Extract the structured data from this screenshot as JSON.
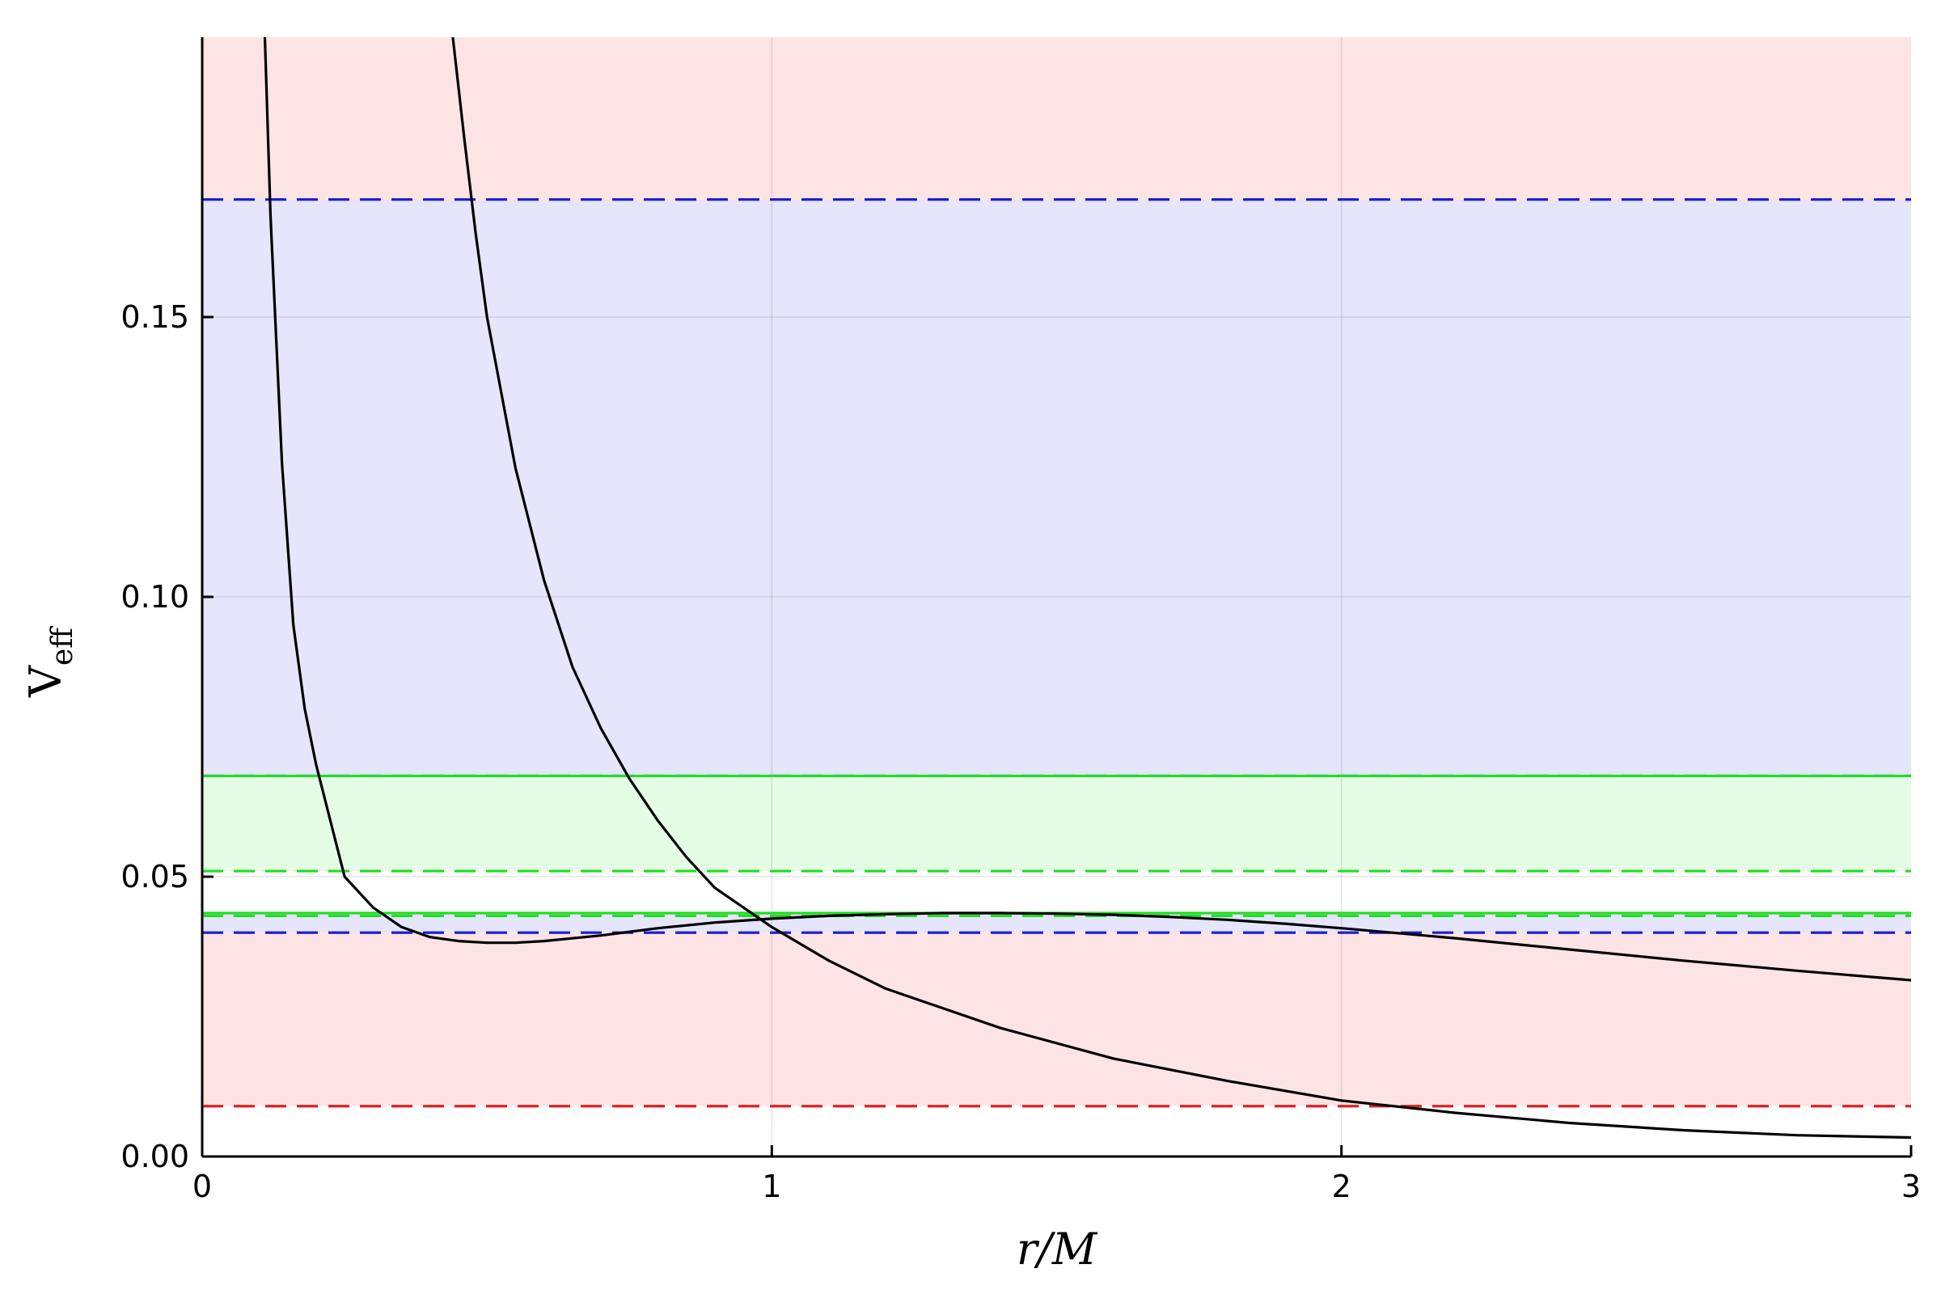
{
  "chart_data": {
    "type": "line",
    "xlabel": "r/M",
    "ylabel": {
      "main": "V",
      "sub": "eff"
    },
    "xlim": [
      0,
      3
    ],
    "ylim": [
      0,
      0.2
    ],
    "grid": true,
    "legend": "none",
    "xticks": [
      {
        "value": 0,
        "label": "0"
      },
      {
        "value": 1,
        "label": "1"
      },
      {
        "value": 2,
        "label": "2"
      },
      {
        "value": 3,
        "label": "3"
      }
    ],
    "yticks": [
      {
        "value": 0,
        "label": "0.00"
      },
      {
        "value": 0.05,
        "label": "0.05"
      },
      {
        "value": 0.1,
        "label": "0.10"
      },
      {
        "value": 0.15,
        "label": "0.15"
      }
    ],
    "bands": [
      {
        "from": 0.171,
        "to": 0.2,
        "color": "#fde4e4"
      },
      {
        "from": 0.068,
        "to": 0.171,
        "color": "#e5e5fb"
      },
      {
        "from": 0.051,
        "to": 0.068,
        "color": "#e4fbe4"
      },
      {
        "from": 0.0435,
        "to": 0.051,
        "color": "#ffffff"
      },
      {
        "from": 0.04,
        "to": 0.0435,
        "color": "#e5e5fb"
      },
      {
        "from": 0.009,
        "to": 0.04,
        "color": "#fde4e4"
      }
    ],
    "hlines": [
      {
        "y": 0.171,
        "color": "#1a1ad6",
        "style": "dashed"
      },
      {
        "y": 0.068,
        "color": "#1a1ad6",
        "style": "dashed"
      },
      {
        "y": 0.068,
        "color": "#22dd22",
        "style": "solid"
      },
      {
        "y": 0.051,
        "color": "#22dd22",
        "style": "dashed"
      },
      {
        "y": 0.0435,
        "color": "#22dd22",
        "style": "solid"
      },
      {
        "y": 0.043,
        "color": "#22dd22",
        "style": "dashed"
      },
      {
        "y": 0.04,
        "color": "#1a1ad6",
        "style": "dashed"
      },
      {
        "y": 0.009,
        "color": "#e02020",
        "style": "dashed"
      }
    ],
    "series": [
      {
        "color": "#000000",
        "x": [
          0.11,
          0.12,
          0.14,
          0.16,
          0.18,
          0.2,
          0.25,
          0.3,
          0.35,
          0.4,
          0.45,
          0.5,
          0.55,
          0.6,
          0.7,
          0.8,
          0.9,
          1.0,
          1.1,
          1.2,
          1.3,
          1.4,
          1.5,
          1.6,
          1.7,
          1.8,
          1.9,
          2.0,
          2.2,
          2.4,
          2.6,
          2.8,
          3.0
        ],
        "y": [
          0.2,
          0.168,
          0.124,
          0.095,
          0.08,
          0.07,
          0.05,
          0.0445,
          0.041,
          0.0392,
          0.0385,
          0.0382,
          0.0382,
          0.0385,
          0.0395,
          0.0408,
          0.0418,
          0.0425,
          0.043,
          0.0433,
          0.0435,
          0.0435,
          0.0434,
          0.0432,
          0.0428,
          0.0423,
          0.0416,
          0.0408,
          0.039,
          0.037,
          0.035,
          0.0332,
          0.0315
        ]
      },
      {
        "color": "#000000",
        "x": [
          0.44,
          0.46,
          0.48,
          0.5,
          0.55,
          0.6,
          0.65,
          0.7,
          0.75,
          0.8,
          0.85,
          0.9,
          1.0,
          1.1,
          1.2,
          1.4,
          1.6,
          1.8,
          2.0,
          2.2,
          2.4,
          2.6,
          2.8,
          3.0
        ],
        "y": [
          0.2,
          0.182,
          0.165,
          0.15,
          0.123,
          0.103,
          0.0875,
          0.0765,
          0.0675,
          0.06,
          0.0535,
          0.048,
          0.041,
          0.035,
          0.03,
          0.023,
          0.0175,
          0.0135,
          0.01,
          0.0078,
          0.006,
          0.0047,
          0.0038,
          0.0034
        ]
      }
    ]
  }
}
